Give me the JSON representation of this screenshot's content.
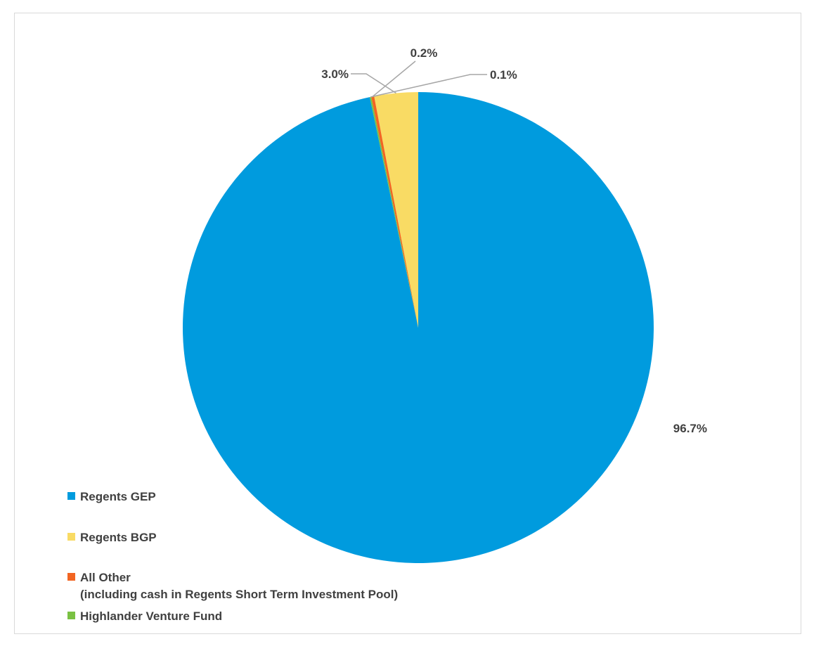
{
  "chart_data": {
    "type": "pie",
    "start_angle": "12 o'clock, clockwise",
    "slices": [
      {
        "name": "Regents GEP",
        "value": 96.7,
        "label": "96.7%",
        "color": "#009BDE"
      },
      {
        "name": "Regents BGP",
        "value": 3.0,
        "label": "3.0%",
        "color": "#F9DB64"
      },
      {
        "name": "All Other",
        "name_line2": "(including cash in Regents Short Term Investment Pool)",
        "value": 0.2,
        "label": "0.2%",
        "color": "#F26522"
      },
      {
        "name": "Highlander Venture Fund",
        "value": 0.1,
        "label": "0.1%",
        "color": "#7AC143"
      }
    ],
    "legend_position": "bottom-left"
  }
}
